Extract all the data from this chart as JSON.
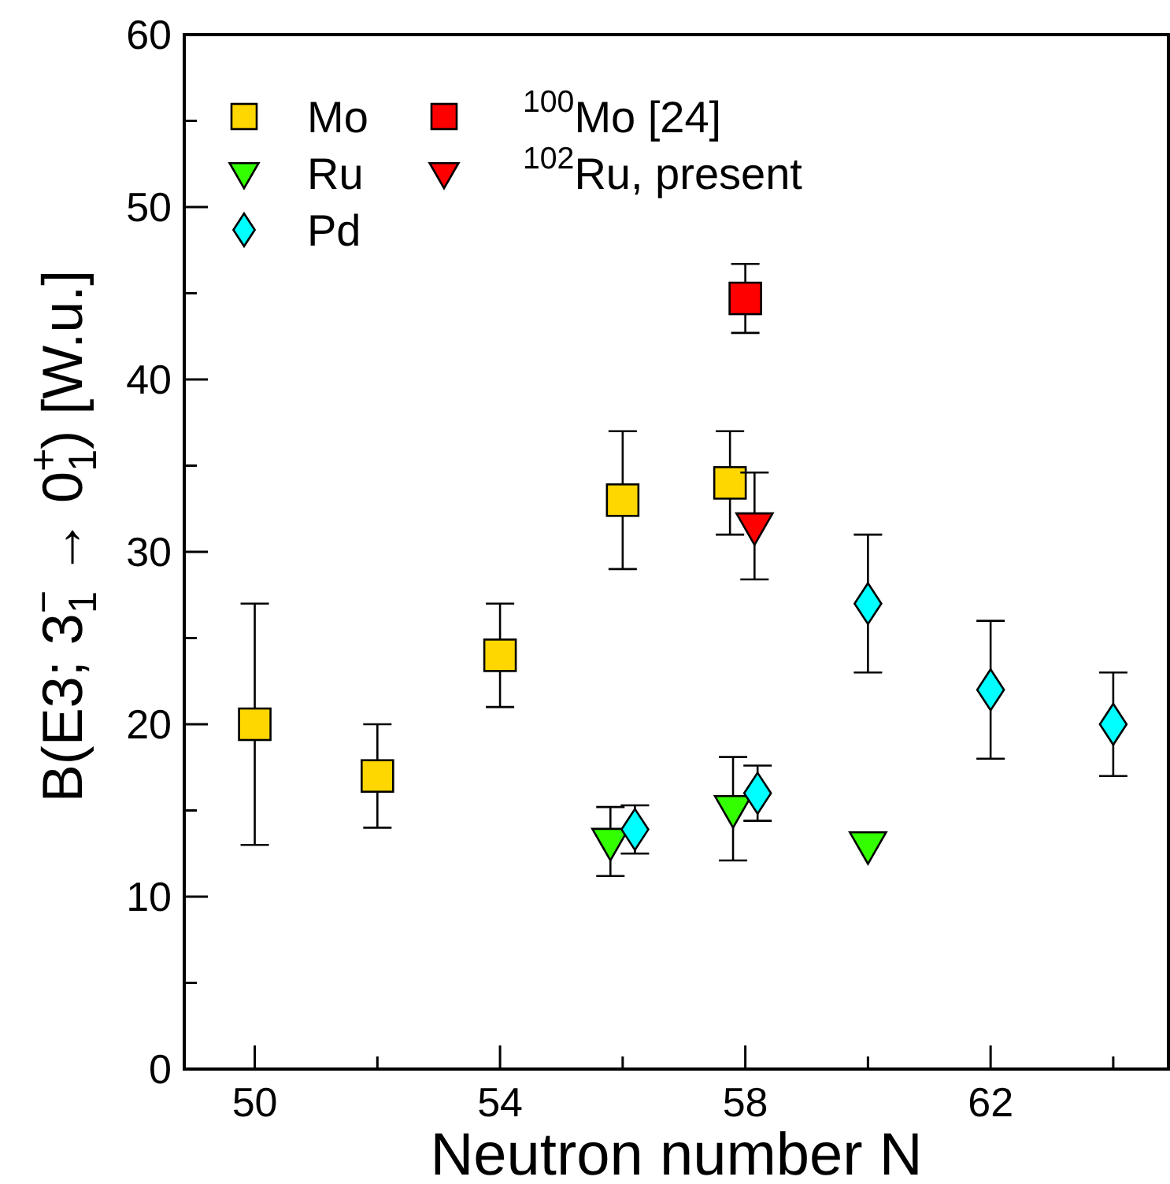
{
  "chart_data": {
    "type": "scatter",
    "xlabel": "Neutron number N",
    "ylabel": "B(E3; 3$^{−}$$_{1}$ → 0$^{+}$$_{1}$)   [W.u.]",
    "xlim": [
      48.85,
      64.9
    ],
    "ylim": [
      0,
      60
    ],
    "xticks": [
      50,
      {
        "value": 52,
        "label": null
      },
      54,
      {
        "value": 56,
        "label": null
      },
      58,
      {
        "value": 60,
        "label": null
      },
      62,
      {
        "value": 64,
        "label": null
      }
    ],
    "yticks": [
      0,
      {
        "value": 5,
        "label": null
      },
      10,
      {
        "value": 15,
        "label": null
      },
      20,
      {
        "value": 25,
        "label": null
      },
      30,
      {
        "value": 35,
        "label": null
      },
      40,
      {
        "value": 45,
        "label": null
      },
      50,
      {
        "value": 55,
        "label": null
      },
      60
    ],
    "legend": "top left",
    "grid": false,
    "series": [
      {
        "name": "Mo",
        "color": "#ffd700",
        "marker": "square",
        "x": [
          50,
          52,
          54,
          56,
          57.75
        ],
        "values": [
          20,
          17,
          24,
          33,
          34
        ],
        "errors": [
          7,
          3,
          3,
          4,
          3
        ]
      },
      {
        "name": "Ru",
        "color": "#33ff00",
        "marker": "triangle",
        "x": [
          55.8,
          57.8,
          60
        ],
        "values": [
          13.2,
          15.1,
          13
        ],
        "errors": [
          2,
          3,
          null
        ]
      },
      {
        "name": "Pd",
        "color": "#00ffff",
        "marker": "diamond",
        "x": [
          56.2,
          58.2,
          60,
          62,
          64
        ],
        "values": [
          13.9,
          16,
          27,
          22,
          20
        ],
        "errors": [
          1.4,
          1.6,
          4,
          4,
          3
        ]
      },
      {
        "name": "$^{100}$Mo [24]",
        "color": "#ff0000",
        "marker": "square",
        "x": [
          58
        ],
        "values": [
          44.7
        ],
        "errors": [
          2
        ]
      },
      {
        "name": "$^{102}$Ru, present",
        "color": "#ff0000",
        "marker": "triangle",
        "x": [
          58.15
        ],
        "values": [
          31.5
        ],
        "errors": [
          3.1
        ]
      }
    ]
  }
}
